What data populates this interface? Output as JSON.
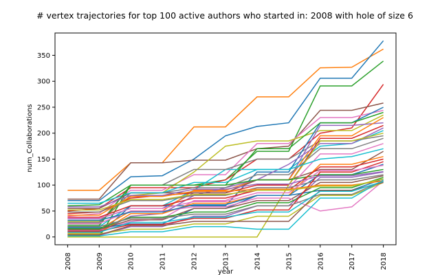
{
  "chart_data": {
    "type": "line",
    "title": "# vertex trajectories for top 100 active authors who started in: 2008 with hole of size 6",
    "xlabel": "year",
    "ylabel": "num_Collaborations",
    "x": [
      "2008",
      "2009",
      "2010",
      "2011",
      "2012",
      "2013",
      "2014",
      "2015",
      "2016",
      "2017",
      "2018"
    ],
    "xlim": [
      2007.6,
      2018.4
    ],
    "ylim": [
      -15,
      393
    ],
    "yticks": [
      0,
      50,
      100,
      150,
      200,
      250,
      300,
      350
    ],
    "legend": "none",
    "grid": false,
    "series": [
      {
        "color": "#ff7f0e",
        "values": [
          90,
          90,
          143,
          143,
          212,
          212,
          270,
          270,
          326,
          327,
          362
        ]
      },
      {
        "color": "#1f77b4",
        "values": [
          70,
          70,
          116,
          118,
          150,
          195,
          213,
          220,
          306,
          306,
          378
        ]
      },
      {
        "color": "#2ca02c",
        "values": [
          60,
          62,
          100,
          100,
          100,
          110,
          165,
          165,
          291,
          291,
          339
        ]
      },
      {
        "color": "#d62728",
        "values": [
          50,
          55,
          95,
          95,
          95,
          110,
          150,
          150,
          200,
          210,
          294
        ]
      },
      {
        "color": "#8c564b",
        "values": [
          73,
          73,
          143,
          143,
          148,
          148,
          170,
          175,
          244,
          244,
          258
        ]
      },
      {
        "color": "#e377c2",
        "values": [
          40,
          45,
          90,
          90,
          120,
          120,
          180,
          180,
          230,
          230,
          244
        ]
      },
      {
        "color": "#bcbd22",
        "values": [
          30,
          30,
          80,
          85,
          125,
          175,
          185,
          185,
          205,
          205,
          235
        ]
      },
      {
        "color": "#17becf",
        "values": [
          20,
          20,
          60,
          60,
          90,
          130,
          130,
          130,
          175,
          180,
          205
        ]
      },
      {
        "color": "#7f7f7f",
        "values": [
          25,
          25,
          100,
          100,
          130,
          130,
          150,
          150,
          185,
          185,
          195
        ]
      },
      {
        "color": "#9467bd",
        "values": [
          35,
          35,
          55,
          55,
          85,
          85,
          110,
          110,
          215,
          215,
          220
        ]
      },
      {
        "color": "#1f77b4",
        "values": [
          5,
          5,
          60,
          60,
          60,
          60,
          125,
          125,
          220,
          220,
          250
        ]
      },
      {
        "color": "#ff7f0e",
        "values": [
          15,
          15,
          50,
          50,
          90,
          90,
          110,
          110,
          195,
          195,
          230
        ]
      },
      {
        "color": "#2ca02c",
        "values": [
          0,
          0,
          100,
          100,
          100,
          100,
          170,
          170,
          220,
          220,
          240
        ]
      },
      {
        "color": "#d62728",
        "values": [
          45,
          48,
          75,
          80,
          85,
          85,
          100,
          100,
          190,
          190,
          215
        ]
      },
      {
        "color": "#9467bd",
        "values": [
          10,
          10,
          40,
          45,
          80,
          95,
          110,
          140,
          180,
          180,
          210
        ]
      },
      {
        "color": "#8c564b",
        "values": [
          55,
          55,
          85,
          85,
          85,
          85,
          110,
          110,
          130,
          130,
          165
        ]
      },
      {
        "color": "#e377c2",
        "values": [
          12,
          12,
          30,
          35,
          70,
          70,
          95,
          95,
          160,
          160,
          180
        ]
      },
      {
        "color": "#7f7f7f",
        "values": [
          28,
          28,
          85,
          85,
          95,
          95,
          120,
          120,
          170,
          170,
          190
        ]
      },
      {
        "color": "#bcbd22",
        "values": [
          0,
          0,
          0,
          0,
          0,
          0,
          0,
          100,
          185,
          185,
          200
        ]
      },
      {
        "color": "#17becf",
        "values": [
          65,
          65,
          85,
          85,
          105,
          105,
          130,
          130,
          150,
          155,
          170
        ]
      },
      {
        "color": "#1f77b4",
        "values": [
          18,
          18,
          25,
          25,
          55,
          55,
          80,
          80,
          120,
          120,
          140
        ]
      },
      {
        "color": "#ff7f0e",
        "values": [
          8,
          8,
          45,
          45,
          65,
          65,
          80,
          80,
          140,
          140,
          155
        ]
      },
      {
        "color": "#2ca02c",
        "values": [
          22,
          22,
          100,
          100,
          100,
          100,
          110,
          110,
          120,
          120,
          130
        ]
      },
      {
        "color": "#d62728",
        "values": [
          38,
          38,
          60,
          60,
          75,
          75,
          90,
          90,
          135,
          135,
          150
        ]
      },
      {
        "color": "#9467bd",
        "values": [
          3,
          3,
          20,
          20,
          40,
          40,
          60,
          60,
          115,
          115,
          125
        ]
      },
      {
        "color": "#8c564b",
        "values": [
          14,
          14,
          33,
          33,
          55,
          55,
          70,
          70,
          105,
          105,
          118
        ]
      },
      {
        "color": "#e377c2",
        "values": [
          26,
          26,
          50,
          50,
          58,
          58,
          75,
          75,
          50,
          58,
          108
        ]
      },
      {
        "color": "#7f7f7f",
        "values": [
          48,
          48,
          70,
          70,
          80,
          80,
          95,
          95,
          110,
          110,
          120
        ]
      },
      {
        "color": "#bcbd22",
        "values": [
          6,
          6,
          15,
          15,
          25,
          25,
          40,
          40,
          80,
          80,
          105
        ]
      },
      {
        "color": "#17becf",
        "values": [
          2,
          2,
          10,
          10,
          20,
          20,
          15,
          15,
          75,
          75,
          110
        ]
      },
      {
        "color": "#1f77b4",
        "values": [
          32,
          32,
          48,
          48,
          62,
          62,
          80,
          80,
          90,
          90,
          112
        ]
      },
      {
        "color": "#ff7f0e",
        "values": [
          42,
          42,
          78,
          78,
          88,
          88,
          92,
          92,
          100,
          100,
          108
        ]
      },
      {
        "color": "#2ca02c",
        "values": [
          16,
          16,
          38,
          38,
          48,
          48,
          66,
          66,
          95,
          95,
          115
        ]
      },
      {
        "color": "#d62728",
        "values": [
          11,
          11,
          24,
          24,
          36,
          36,
          52,
          52,
          125,
          125,
          145
        ]
      },
      {
        "color": "#9467bd",
        "values": [
          58,
          58,
          80,
          80,
          92,
          92,
          102,
          102,
          118,
          118,
          126
        ]
      },
      {
        "color": "#8c564b",
        "values": [
          4,
          4,
          22,
          22,
          30,
          30,
          30,
          30,
          90,
          90,
          105
        ]
      },
      {
        "color": "#e377c2",
        "values": [
          36,
          36,
          55,
          55,
          68,
          68,
          85,
          85,
          128,
          128,
          138
        ]
      },
      {
        "color": "#7f7f7f",
        "values": [
          20,
          20,
          36,
          36,
          44,
          44,
          60,
          60,
          82,
          82,
          108
        ]
      },
      {
        "color": "#bcbd22",
        "values": [
          52,
          52,
          72,
          72,
          82,
          82,
          90,
          90,
          98,
          98,
          112
        ]
      },
      {
        "color": "#17becf",
        "values": [
          9,
          9,
          28,
          28,
          38,
          38,
          48,
          48,
          88,
          88,
          107
        ]
      }
    ]
  }
}
